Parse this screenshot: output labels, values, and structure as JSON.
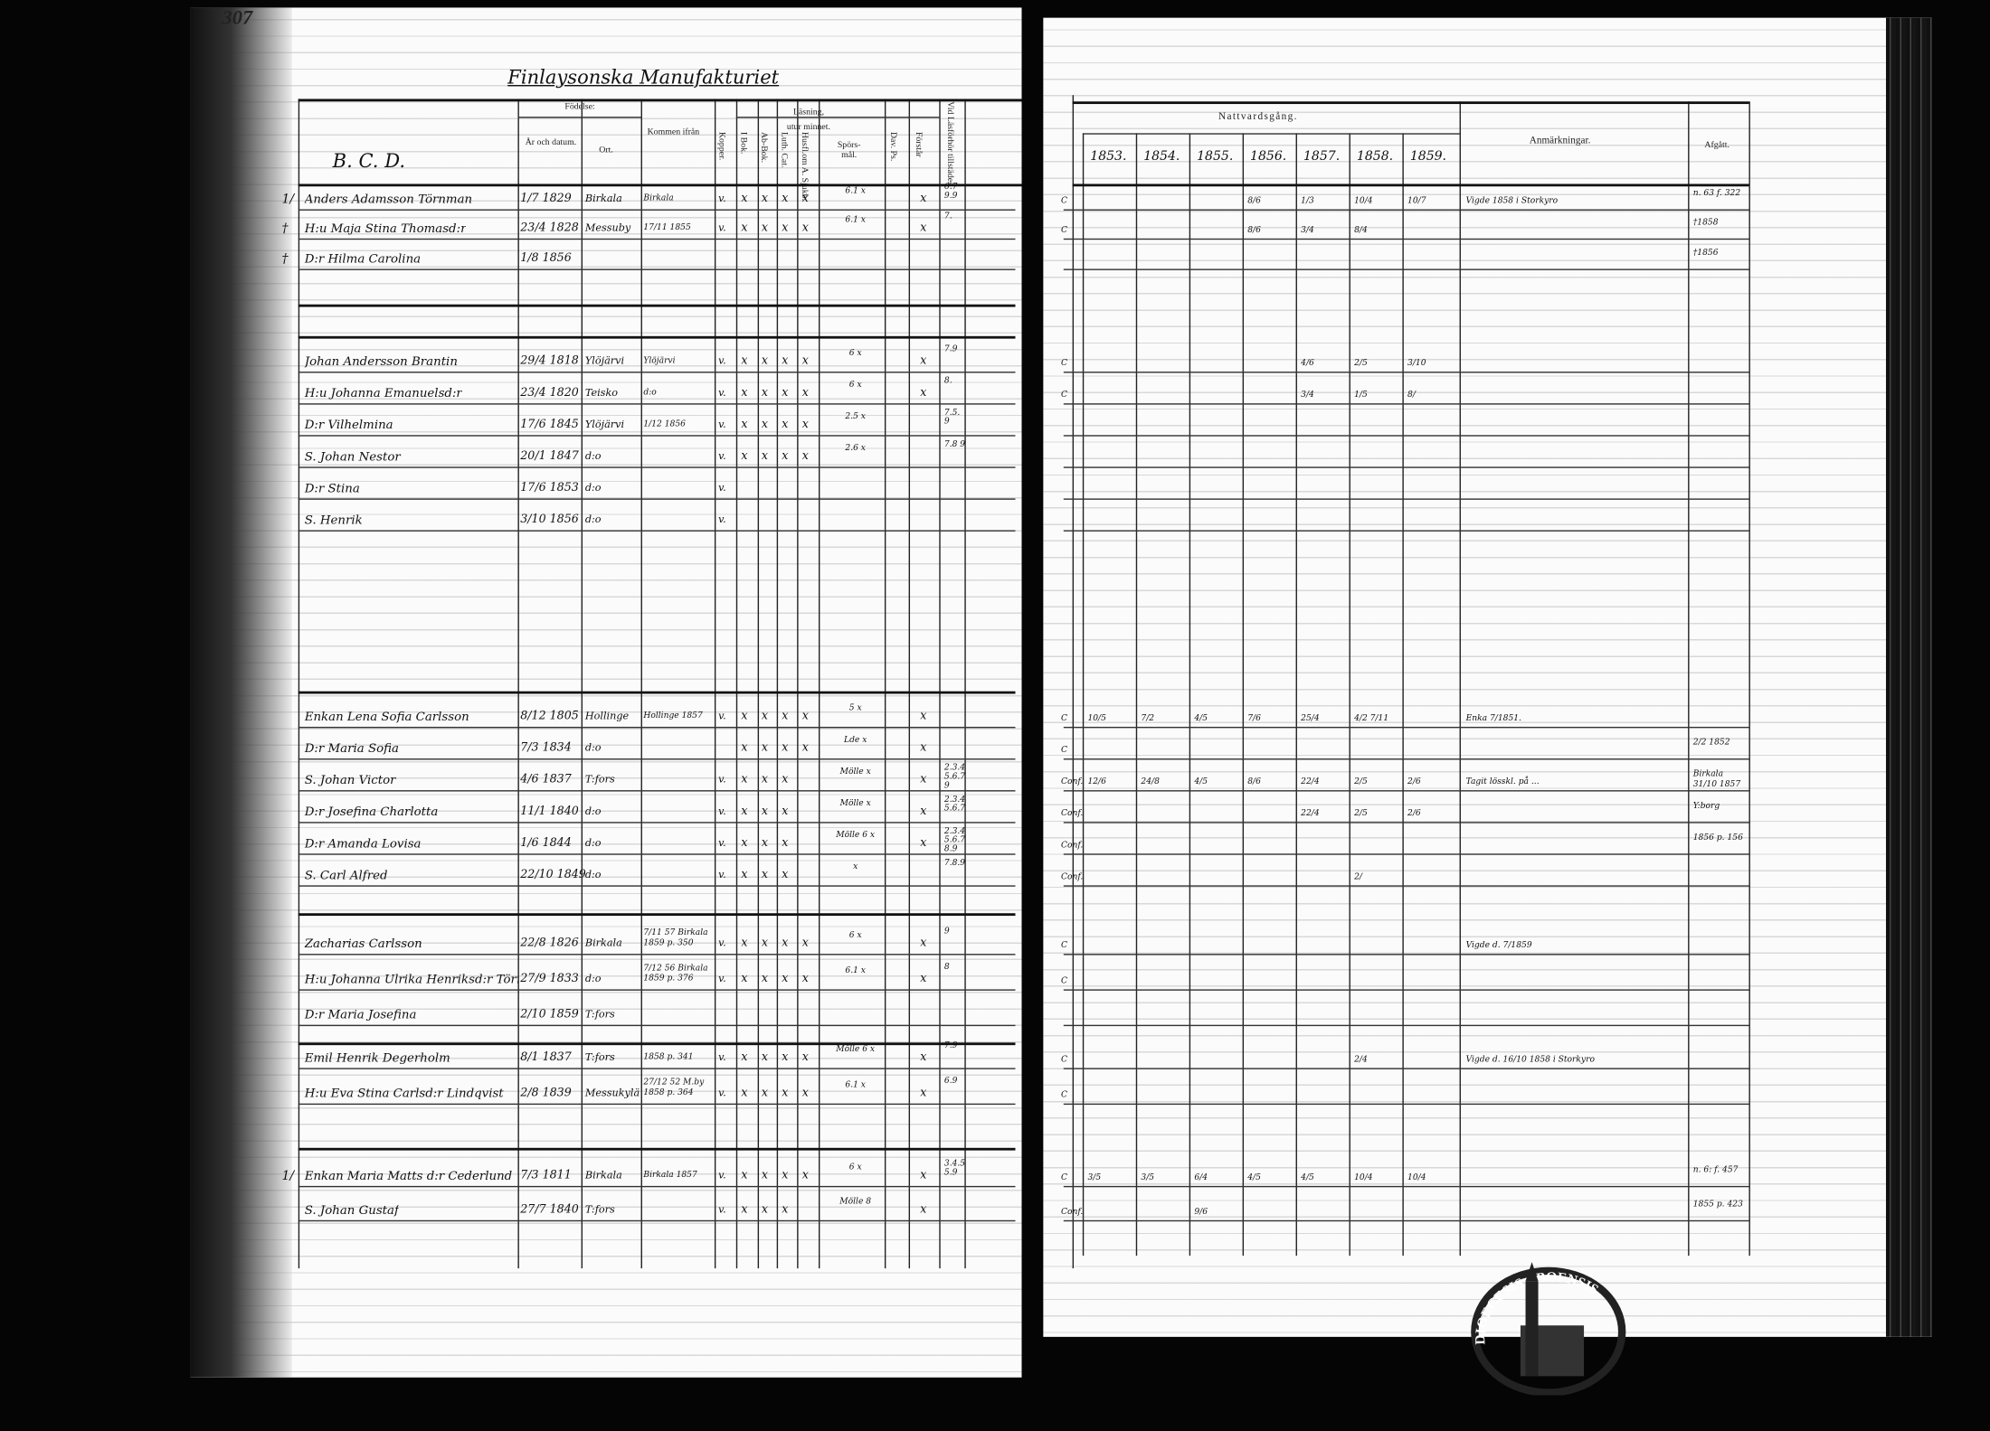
{
  "left_page": {
    "page_number": "307",
    "title": "Finlaysonska Manufakturiet",
    "section_letters": "B. C. D.",
    "headers": {
      "fodelse": "Födelse:",
      "ar": "År och datum.",
      "ort": "Ort.",
      "kommen": "Kommen ifrån",
      "kopper": "Kopper.",
      "lasning": "Läsning,",
      "utur_minnet": "utur minnet.",
      "bok": "I Bok.",
      "ab_bok": "Ab-Bok.",
      "luth_cat": "Luth. Cat.",
      "husfl": "Husfl.om A. Sjukb.",
      "sporsmal": "Spörs-mål.",
      "dav_ps": "Dav. Ps.",
      "forstar": "Förstår",
      "vid_las": "Vid Läsförhör tillstädes"
    },
    "rows": [
      {
        "mark": "1/",
        "name": "Anders Adamsson Törnman",
        "born": "1/7 1829",
        "place": "Birkala",
        "from": "Birkala",
        "kopper": "v.",
        "reading": [
          "x",
          "x",
          "x",
          "x"
        ],
        "spors": "6.1 x",
        "forstar": "x",
        "vid": "6.7 9.9"
      },
      {
        "mark": "†",
        "name": "H:u Maja Stina Thomasd:r",
        "born": "23/4 1828",
        "place": "Messuby",
        "from": "17/11 1855",
        "kopper": "v.",
        "reading": [
          "x",
          "x",
          "x",
          "x"
        ],
        "spors": "6.1 x",
        "forstar": "x",
        "vid": "7."
      },
      {
        "mark": "†",
        "name": "D:r Hilma Carolina",
        "born": "1/8 1856",
        "place": "",
        "from": "",
        "kopper": "",
        "reading": [
          "",
          "",
          "",
          ""
        ],
        "spors": "",
        "forstar": "",
        "vid": ""
      },
      {
        "mark": "",
        "name": "Johan Andersson Brantin",
        "born": "29/4 1818",
        "place": "Ylöjärvi",
        "from": "Ylöjärvi",
        "kopper": "v.",
        "reading": [
          "x",
          "x",
          "x",
          "x"
        ],
        "spors": "6 x",
        "forstar": "x",
        "vid": "7.9"
      },
      {
        "mark": "",
        "name": "H:u Johanna Emanuelsd:r",
        "born": "23/4 1820",
        "place": "Teisko",
        "from": "d:o",
        "kopper": "v.",
        "reading": [
          "x",
          "x",
          "x",
          "x"
        ],
        "spors": "6 x",
        "forstar": "x",
        "vid": "8."
      },
      {
        "mark": "",
        "name": "D:r Vilhelmina",
        "born": "17/6 1845",
        "place": "Ylöjärvi",
        "from": "1/12 1856",
        "kopper": "v.",
        "reading": [
          "x",
          "x",
          "x",
          "x"
        ],
        "spors": "2.5 x",
        "forstar": "",
        "vid": "7.5. 9"
      },
      {
        "mark": "",
        "name": "S. Johan Nestor",
        "born": "20/1 1847",
        "place": "d:o",
        "from": "",
        "kopper": "v.",
        "reading": [
          "x",
          "x",
          "x",
          "x"
        ],
        "spors": "2.6 x",
        "forstar": "",
        "vid": "7.8 9"
      },
      {
        "mark": "",
        "name": "D:r Stina",
        "born": "17/6 1853",
        "place": "d:o",
        "from": "",
        "kopper": "v.",
        "reading": [
          "",
          "",
          "",
          ""
        ],
        "spors": "",
        "forstar": "",
        "vid": ""
      },
      {
        "mark": "",
        "name": "S. Henrik",
        "born": "3/10 1856",
        "place": "d:o",
        "from": "",
        "kopper": "v.",
        "reading": [
          "",
          "",
          "",
          ""
        ],
        "spors": "",
        "forstar": "",
        "vid": ""
      },
      {
        "mark": "",
        "name": "Enkan Lena Sofia Carlsson",
        "born": "8/12 1805",
        "place": "Hollinge",
        "from": "Hollinge 1857",
        "kopper": "v.",
        "reading": [
          "x",
          "x",
          "x",
          "x"
        ],
        "spors": "5 x",
        "forstar": "x",
        "vid": ""
      },
      {
        "mark": "",
        "name": "D:r Maria Sofia",
        "born": "7/3 1834",
        "place": "d:o",
        "from": "",
        "kopper": "",
        "reading": [
          "x",
          "x",
          "x",
          "x"
        ],
        "spors": "Lde x",
        "forstar": "x",
        "vid": ""
      },
      {
        "mark": "",
        "name": "S. Johan Victor",
        "born": "4/6 1837",
        "place": "T:fors",
        "from": "",
        "kopper": "v.",
        "reading": [
          "x",
          "x",
          "x",
          ""
        ],
        "spors": "Mölle x",
        "forstar": "x",
        "vid": "2.3.4 5.6.7 9"
      },
      {
        "mark": "",
        "name": "D:r Josefina Charlotta",
        "born": "11/1 1840",
        "place": "d:o",
        "from": "",
        "kopper": "v.",
        "reading": [
          "x",
          "x",
          "x",
          ""
        ],
        "spors": "Mölle x",
        "forstar": "x",
        "vid": "2.3.4 5.6.7"
      },
      {
        "mark": "",
        "name": "D:r Amanda Lovisa",
        "born": "1/6 1844",
        "place": "d:o",
        "from": "",
        "kopper": "v.",
        "reading": [
          "x",
          "x",
          "x",
          ""
        ],
        "spors": "Mölle 6 x",
        "forstar": "x",
        "vid": "2.3.4 5.6.7 8.9"
      },
      {
        "mark": "",
        "name": "S. Carl Alfred",
        "born": "22/10 1849",
        "place": "d:o",
        "from": "",
        "kopper": "v.",
        "reading": [
          "x",
          "x",
          "x",
          ""
        ],
        "spors": "x",
        "forstar": "",
        "vid": "7.8.9"
      },
      {
        "mark": "",
        "name": "Zacharias Carlsson",
        "born": "22/8 1826",
        "place": "Birkala",
        "from": "7/11 57 Birkala 1859 p. 350",
        "kopper": "v.",
        "reading": [
          "x",
          "x",
          "x",
          "x"
        ],
        "spors": "6 x",
        "forstar": "x",
        "vid": "9"
      },
      {
        "mark": "",
        "name": "H:u Johanna Ulrika Henriksd:r Törn",
        "born": "27/9 1833",
        "place": "d:o",
        "from": "7/12 56 Birkala 1859 p. 376",
        "kopper": "v.",
        "reading": [
          "x",
          "x",
          "x",
          "x"
        ],
        "spors": "6.1 x",
        "forstar": "x",
        "vid": "8"
      },
      {
        "mark": "",
        "name": "D:r Maria Josefina",
        "born": "2/10 1859",
        "place": "T:fors",
        "from": "",
        "kopper": "",
        "reading": [
          "",
          "",
          "",
          ""
        ],
        "spors": "",
        "forstar": "",
        "vid": ""
      },
      {
        "mark": "",
        "name": "Emil Henrik Degerholm",
        "born": "8/1 1837",
        "place": "T:fors",
        "from": "1858 p. 341",
        "kopper": "v.",
        "reading": [
          "x",
          "x",
          "x",
          "x"
        ],
        "spors": "Mölle 6 x",
        "forstar": "x",
        "vid": "7.9"
      },
      {
        "mark": "",
        "name": "H:u Eva Stina Carlsd:r Lindqvist",
        "born": "2/8 1839",
        "place": "Messukylä",
        "from": "27/12 52 M.by 1858 p. 364",
        "kopper": "v.",
        "reading": [
          "x",
          "x",
          "x",
          "x"
        ],
        "spors": "6.1 x",
        "forstar": "x",
        "vid": "6.9"
      },
      {
        "mark": "1/",
        "name": "Enkan Maria Matts d:r Cederlund",
        "born": "7/3 1811",
        "place": "Birkala",
        "from": "Birkala 1857",
        "kopper": "v.",
        "reading": [
          "x",
          "x",
          "x",
          "x"
        ],
        "spors": "6 x",
        "forstar": "x",
        "vid": "3.4.5 5.9"
      },
      {
        "mark": "",
        "name": "S. Johan Gustaf",
        "born": "27/7 1840",
        "place": "T:fors",
        "from": "",
        "kopper": "v.",
        "reading": [
          "x",
          "x",
          "x",
          ""
        ],
        "spors": "Mölle 8",
        "forstar": "x",
        "vid": ""
      }
    ]
  },
  "right_page": {
    "header_nattvard": "Nattvardsgång.",
    "years": [
      "1853.",
      "1854.",
      "1855.",
      "1856.",
      "1857.",
      "1858.",
      "1859."
    ],
    "header_anmarkningar": "Anmärkningar.",
    "header_afgatt": "Afgått.",
    "rows": [
      {
        "conf": "C",
        "y": [
          "",
          "",
          "",
          "8/6",
          "1/3",
          "10/4",
          "10/7"
        ],
        "remark": "Vigde 1858 i Storkyro",
        "afgatt": "n. 63 f. 322"
      },
      {
        "conf": "C",
        "y": [
          "",
          "",
          "",
          "8/6",
          "3/4",
          "8/4",
          ""
        ],
        "remark": "",
        "afgatt": "†1858"
      },
      {
        "conf": "",
        "y": [
          "",
          "",
          "",
          "",
          "",
          "",
          ""
        ],
        "remark": "",
        "afgatt": "†1856"
      },
      {
        "conf": "C",
        "y": [
          "",
          "",
          "",
          "",
          "4/6",
          "2/5",
          "3/10"
        ],
        "remark": "",
        "afgatt": ""
      },
      {
        "conf": "C",
        "y": [
          "",
          "",
          "",
          "",
          "3/4",
          "1/5",
          "8/"
        ],
        "remark": "",
        "afgatt": ""
      },
      {
        "conf": "",
        "y": [
          "",
          "",
          "",
          "",
          "",
          "",
          ""
        ],
        "remark": "",
        "afgatt": ""
      },
      {
        "conf": "",
        "y": [
          "",
          "",
          "",
          "",
          "",
          "",
          ""
        ],
        "remark": "",
        "afgatt": ""
      },
      {
        "conf": "",
        "y": [
          "",
          "",
          "",
          "",
          "",
          "",
          ""
        ],
        "remark": "",
        "afgatt": ""
      },
      {
        "conf": "",
        "y": [
          "",
          "",
          "",
          "",
          "",
          "",
          ""
        ],
        "remark": "",
        "afgatt": ""
      },
      {
        "conf": "C",
        "y": [
          "10/5",
          "7/2",
          "4/5",
          "7/6",
          "25/4",
          "4/2 7/11",
          ""
        ],
        "remark": "Enka 7/1851.",
        "afgatt": ""
      },
      {
        "conf": "C",
        "y": [
          "",
          "",
          "",
          "",
          "",
          "",
          ""
        ],
        "remark": "",
        "afgatt": "2/2 1852"
      },
      {
        "conf": "Conf.",
        "y": [
          "12/6",
          "24/8",
          "4/5",
          "8/6",
          "22/4",
          "2/5",
          "2/6"
        ],
        "remark": "Tagit lösskl. på ...",
        "afgatt": "Birkala 31/10 1857"
      },
      {
        "conf": "Conf.",
        "y": [
          "",
          "",
          "",
          "",
          "22/4",
          "2/5",
          "2/6"
        ],
        "remark": "",
        "afgatt": "Y:borg"
      },
      {
        "conf": "Conf.",
        "y": [
          "",
          "",
          "",
          "",
          "",
          "",
          ""
        ],
        "remark": "",
        "afgatt": "1856 p. 156"
      },
      {
        "conf": "Conf.",
        "y": [
          "",
          "",
          "",
          "",
          "",
          "2/",
          ""
        ],
        "remark": "",
        "afgatt": ""
      },
      {
        "conf": "C",
        "y": [
          "",
          "",
          "",
          "",
          "",
          "",
          ""
        ],
        "remark": "Vigde d. 7/1859",
        "afgatt": ""
      },
      {
        "conf": "C",
        "y": [
          "",
          "",
          "",
          "",
          "",
          "",
          ""
        ],
        "remark": "",
        "afgatt": ""
      },
      {
        "conf": "",
        "y": [
          "",
          "",
          "",
          "",
          "",
          "",
          ""
        ],
        "remark": "",
        "afgatt": ""
      },
      {
        "conf": "C",
        "y": [
          "",
          "",
          "",
          "",
          "",
          "2/4",
          ""
        ],
        "remark": "Vigde d. 16/10 1858 i Storkyro",
        "afgatt": ""
      },
      {
        "conf": "C",
        "y": [
          "",
          "",
          "",
          "",
          "",
          "",
          ""
        ],
        "remark": "",
        "afgatt": ""
      },
      {
        "conf": "C",
        "y": [
          "3/5",
          "3/5",
          "6/4",
          "4/5",
          "4/5",
          "10/4",
          "10/4"
        ],
        "remark": "",
        "afgatt": "n. 6: f. 457"
      },
      {
        "conf": "Conf.",
        "y": [
          "",
          "",
          "9/6",
          "",
          "",
          "",
          ""
        ],
        "remark": "",
        "afgatt": "1855 p. 423"
      }
    ]
  },
  "stamp": {
    "text": "DIOECESIS ABOENSIS"
  }
}
